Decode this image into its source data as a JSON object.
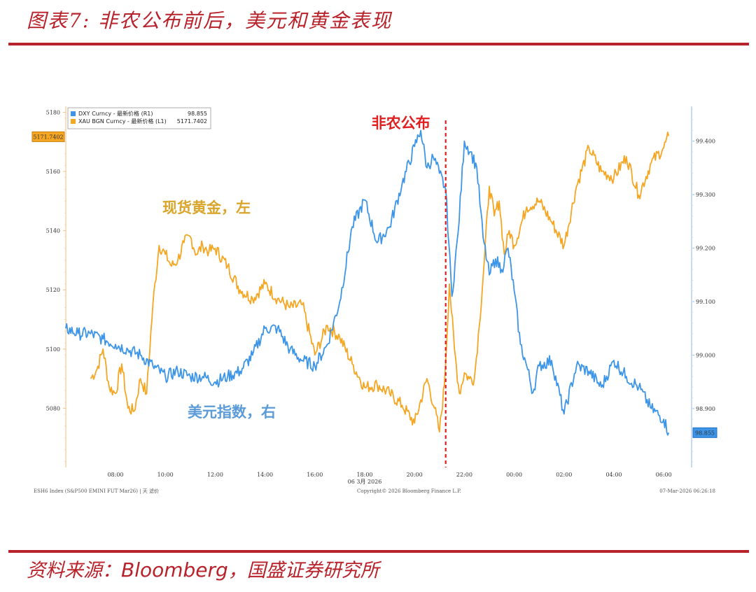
{
  "header": {
    "title": "图表7:  非农公布前后，美元和黄金表现"
  },
  "footer": {
    "source_prefix": "资料来源：",
    "source_brand": "Bloomberg",
    "source_suffix": "，国盛证券研究所"
  },
  "colors": {
    "accent": "#b8222a",
    "gold": "#f5a623",
    "blue": "#3d95e8",
    "event": "#e02020"
  },
  "chart_data": {
    "type": "line",
    "title": "",
    "legend_position": "top-left",
    "legend": [
      {
        "name": "DXY Curncy - 最新价格 (R1)",
        "value": "98.855",
        "color": "#3d95e8"
      },
      {
        "name": "XAU BGN Curncy - 最新价格 (L1)",
        "value": "5171.7402",
        "color": "#f5a623"
      }
    ],
    "x_ticks": [
      "08:00",
      "10:00",
      "12:00",
      "14:00",
      "16:00",
      "18:00",
      "20:00",
      "22:00",
      "00:00",
      "02:00",
      "04:00",
      "06:00"
    ],
    "x_sublabel": "06 3月 2026",
    "x_range_hours": [
      6.0,
      30.3
    ],
    "left_axis": {
      "ticks": [
        5080,
        5100,
        5120,
        5140,
        5160,
        5180
      ],
      "range": [
        5060,
        5182
      ],
      "last_value_tag": "5171.7402"
    },
    "right_axis": {
      "ticks": [
        "98.900",
        "99.000",
        "99.100",
        "99.200",
        "99.300",
        "99.400"
      ],
      "range": [
        98.79,
        99.465
      ],
      "last_value_tag": "98.855"
    },
    "event": {
      "label": "非农公布",
      "time_hours": 21.25
    },
    "annotations": {
      "gold": "现货黄金，左",
      "blue": "美元指数，右"
    },
    "series": [
      {
        "name": "XAU BGN Curncy",
        "axis": "left",
        "x": [
          7.0,
          7.25,
          7.5,
          7.75,
          8.0,
          8.25,
          8.5,
          8.75,
          9.0,
          9.25,
          9.5,
          9.75,
          10.0,
          10.25,
          10.5,
          10.75,
          11.0,
          11.25,
          11.5,
          11.75,
          12.0,
          12.5,
          13.0,
          13.5,
          14.0,
          14.5,
          15.0,
          15.5,
          16.0,
          16.5,
          17.0,
          17.5,
          18.0,
          18.5,
          19.0,
          19.5,
          20.0,
          20.5,
          20.8,
          21.0,
          21.2,
          21.4,
          21.6,
          21.8,
          22.0,
          22.2,
          22.4,
          22.6,
          22.8,
          23.0,
          23.2,
          23.4,
          23.6,
          23.8,
          24.0,
          24.5,
          25.0,
          25.5,
          26.0,
          26.5,
          27.0,
          27.5,
          28.0,
          28.5,
          29.0,
          29.5,
          30.0,
          30.2
        ],
        "values": [
          5090,
          5093,
          5100,
          5087,
          5085,
          5095,
          5080,
          5079,
          5090,
          5085,
          5115,
          5135,
          5132,
          5128,
          5130,
          5136,
          5138,
          5132,
          5135,
          5133,
          5134,
          5128,
          5120,
          5117,
          5122,
          5117,
          5114,
          5115,
          5098,
          5108,
          5104,
          5095,
          5087,
          5088,
          5085,
          5081,
          5075,
          5090,
          5080,
          5072,
          5088,
          5122,
          5100,
          5085,
          5092,
          5090,
          5090,
          5108,
          5130,
          5155,
          5145,
          5150,
          5132,
          5140,
          5135,
          5148,
          5150,
          5143,
          5135,
          5155,
          5168,
          5160,
          5158,
          5165,
          5152,
          5163,
          5168,
          5172
        ]
      },
      {
        "name": "DXY Curncy",
        "axis": "right",
        "x": [
          6.0,
          6.5,
          7.0,
          7.5,
          8.0,
          8.5,
          9.0,
          9.5,
          10.0,
          10.5,
          11.0,
          11.5,
          12.0,
          12.5,
          13.0,
          13.5,
          14.0,
          14.5,
          15.0,
          15.5,
          16.0,
          16.5,
          17.0,
          17.5,
          18.0,
          18.5,
          19.0,
          19.5,
          20.0,
          20.25,
          20.5,
          20.75,
          21.0,
          21.25,
          21.5,
          21.75,
          22.0,
          22.25,
          22.5,
          22.75,
          23.0,
          23.25,
          23.5,
          23.75,
          24.0,
          24.25,
          24.5,
          24.75,
          25.0,
          25.5,
          26.0,
          26.5,
          27.0,
          27.5,
          28.0,
          28.5,
          29.0,
          29.5,
          30.0,
          30.2
        ],
        "values": [
          99.05,
          99.04,
          99.04,
          99.03,
          99.02,
          99.01,
          99.0,
          98.98,
          98.96,
          98.97,
          98.96,
          98.96,
          98.95,
          98.96,
          98.97,
          99.0,
          99.05,
          99.05,
          99.01,
          98.99,
          98.98,
          99.02,
          99.1,
          99.24,
          99.29,
          99.21,
          99.24,
          99.32,
          99.39,
          99.42,
          99.35,
          99.37,
          99.34,
          99.31,
          99.11,
          99.23,
          99.4,
          99.38,
          99.35,
          99.22,
          99.15,
          99.18,
          99.16,
          99.2,
          99.12,
          99.02,
          98.98,
          98.93,
          98.98,
          98.99,
          98.89,
          98.98,
          98.97,
          98.94,
          98.99,
          98.96,
          98.94,
          98.9,
          98.88,
          98.855
        ]
      }
    ],
    "footer_left": "ESH6 Index (S&P500 EMINI FUT  Mar26) | 天 滤价",
    "footer_center": "Copyright© 2026 Bloomberg Finance L.P.",
    "footer_right": "07-Mar-2026 06:26:18"
  }
}
